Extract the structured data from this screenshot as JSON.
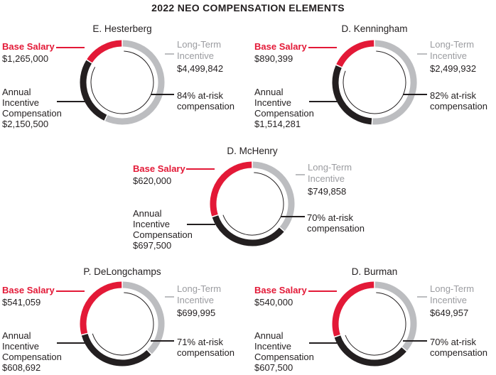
{
  "title": "2022 NEO COMPENSATION ELEMENTS",
  "colors": {
    "base": "#e31937",
    "annual": "#231f20",
    "lti": "#bcbdc0",
    "text": "#231f20"
  },
  "chart_data": [
    {
      "type": "pie",
      "name": "E. Hesterberg",
      "categories": [
        "Base Salary",
        "Long-Term Incentive",
        "Annual Incentive Compensation"
      ],
      "values": [
        1265000,
        4499842,
        2150500
      ],
      "base_label": "Base Salary",
      "base_value": "$1,265,000",
      "lti_label_1": "Long-Term",
      "lti_label_2": "Incentive",
      "lti_value": "$4,499,842",
      "aic_label_1": "Annual",
      "aic_label_2": "Incentive",
      "aic_label_3": "Compensation",
      "aic_value": "$2,150,500",
      "at_risk_1": "84% at-risk",
      "at_risk_2": "compensation"
    },
    {
      "type": "pie",
      "name": "D. Kenningham",
      "categories": [
        "Base Salary",
        "Long-Term Incentive",
        "Annual Incentive Compensation"
      ],
      "values": [
        890399,
        2499932,
        1514281
      ],
      "base_label": "Base Salary",
      "base_value": "$890,399",
      "lti_label_1": "Long-Term",
      "lti_label_2": "Incentive",
      "lti_value": "$2,499,932",
      "aic_label_1": "Annual",
      "aic_label_2": "Incentive",
      "aic_label_3": "Compensation",
      "aic_value": "$1,514,281",
      "at_risk_1": "82% at-risk",
      "at_risk_2": "compensation"
    },
    {
      "type": "pie",
      "name": "D. McHenry",
      "categories": [
        "Base Salary",
        "Long-Term Incentive",
        "Annual Incentive Compensation"
      ],
      "values": [
        620000,
        749858,
        697500
      ],
      "base_label": "Base Salary",
      "base_value": "$620,000",
      "lti_label_1": "Long-Term",
      "lti_label_2": "Incentive",
      "lti_value": "$749,858",
      "aic_label_1": "Annual",
      "aic_label_2": "Incentive",
      "aic_label_3": "Compensation",
      "aic_value": "$697,500",
      "at_risk_1": "70% at-risk",
      "at_risk_2": "compensation"
    },
    {
      "type": "pie",
      "name": "P. DeLongchamps",
      "categories": [
        "Base Salary",
        "Long-Term Incentive",
        "Annual Incentive Compensation"
      ],
      "values": [
        541059,
        699995,
        608692
      ],
      "base_label": "Base Salary",
      "base_value": "$541,059",
      "lti_label_1": "Long-Term",
      "lti_label_2": "Incentive",
      "lti_value": "$699,995",
      "aic_label_1": "Annual",
      "aic_label_2": "Incentive",
      "aic_label_3": "Compensation",
      "aic_value": "$608,692",
      "at_risk_1": "71% at-risk",
      "at_risk_2": "compensation"
    },
    {
      "type": "pie",
      "name": "D. Burman",
      "categories": [
        "Base Salary",
        "Long-Term Incentive",
        "Annual Incentive Compensation"
      ],
      "values": [
        540000,
        649957,
        607500
      ],
      "base_label": "Base Salary",
      "base_value": "$540,000",
      "lti_label_1": "Long-Term",
      "lti_label_2": "Incentive",
      "lti_value": "$649,957",
      "aic_label_1": "Annual",
      "aic_label_2": "Incentive",
      "aic_label_3": "Compensation",
      "aic_value": "$607,500",
      "at_risk_1": "70% at-risk",
      "at_risk_2": "compensation"
    }
  ]
}
